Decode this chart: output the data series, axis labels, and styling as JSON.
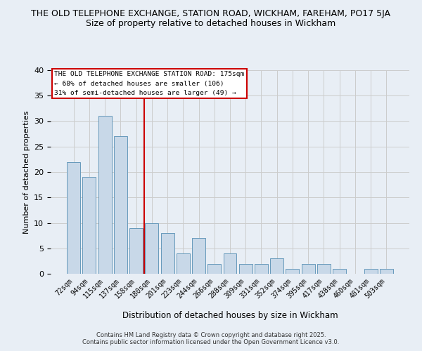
{
  "title1": "THE OLD TELEPHONE EXCHANGE, STATION ROAD, WICKHAM, FAREHAM, PO17 5JA",
  "title2": "Size of property relative to detached houses in Wickham",
  "xlabel": "Distribution of detached houses by size in Wickham",
  "ylabel": "Number of detached properties",
  "bin_labels": [
    "72sqm",
    "94sqm",
    "115sqm",
    "137sqm",
    "158sqm",
    "180sqm",
    "201sqm",
    "223sqm",
    "244sqm",
    "266sqm",
    "288sqm",
    "309sqm",
    "331sqm",
    "352sqm",
    "374sqm",
    "395sqm",
    "417sqm",
    "438sqm",
    "460sqm",
    "481sqm",
    "503sqm"
  ],
  "bar_heights": [
    22,
    19,
    31,
    27,
    9,
    10,
    8,
    4,
    7,
    2,
    4,
    2,
    2,
    3,
    1,
    2,
    2,
    1,
    0,
    1,
    1
  ],
  "bar_color": "#c8d8e8",
  "bar_edge_color": "#6699bb",
  "vline_color": "#cc0000",
  "ylim": [
    0,
    40
  ],
  "yticks": [
    0,
    5,
    10,
    15,
    20,
    25,
    30,
    35,
    40
  ],
  "annotation_title": "THE OLD TELEPHONE EXCHANGE STATION ROAD: 175sqm",
  "annotation_line2": "← 68% of detached houses are smaller (106)",
  "annotation_line3": "31% of semi-detached houses are larger (49) →",
  "annotation_box_color": "#cc0000",
  "annotation_bg": "#ffffff",
  "footer1": "Contains HM Land Registry data © Crown copyright and database right 2025.",
  "footer2": "Contains public sector information licensed under the Open Government Licence v3.0.",
  "grid_color": "#cccccc",
  "background_color": "#e8eef5",
  "title_fontsize": 9,
  "subtitle_fontsize": 9,
  "bar_width": 0.85,
  "vline_bar_index": 5
}
